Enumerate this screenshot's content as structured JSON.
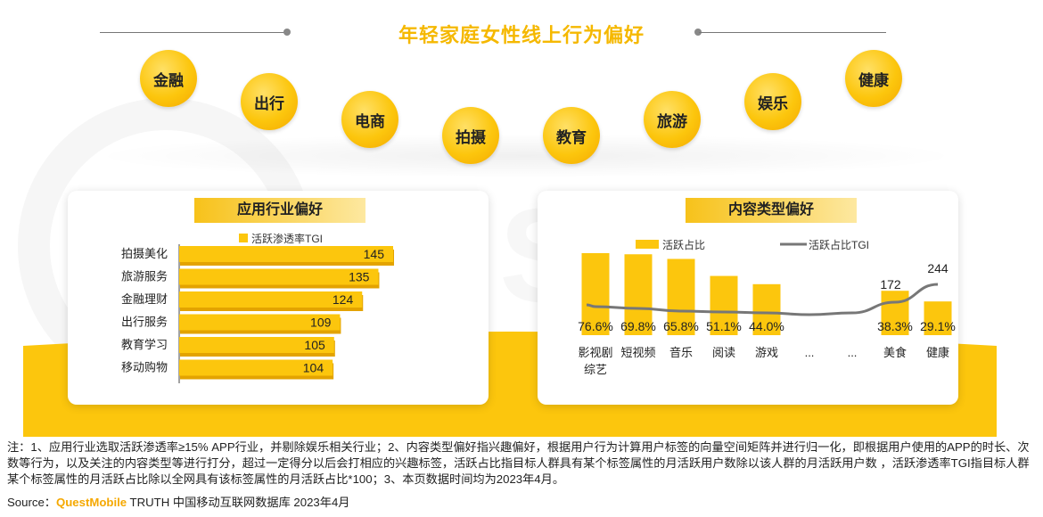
{
  "title": "年轻家庭女性线上行为偏好",
  "behaviors": [
    "金融",
    "出行",
    "电商",
    "拍摄",
    "教育",
    "旅游",
    "娱乐",
    "健康"
  ],
  "left_panel": {
    "title": "应用行业偏好",
    "legend": "活跃渗透率TGI"
  },
  "right_panel": {
    "title": "内容类型偏好",
    "legend_bar": "活跃占比",
    "legend_line": "活跃占比TGI"
  },
  "chart_data": [
    {
      "type": "bar",
      "orientation": "horizontal",
      "categories": [
        "拍摄美化",
        "旅游服务",
        "金融理财",
        "出行服务",
        "教育学习",
        "移动购物"
      ],
      "series": [
        {
          "name": "活跃渗透率TGI",
          "values": [
            145,
            135,
            124,
            109,
            105,
            104
          ]
        }
      ]
    },
    {
      "type": "bar",
      "categories": [
        "影视剧综艺",
        "短视频",
        "音乐",
        "阅读",
        "游戏",
        "...",
        "...",
        "美食",
        "健康"
      ],
      "category_labels": [
        [
          "影视剧",
          "综艺"
        ],
        [
          "短视频"
        ],
        [
          "音乐"
        ],
        [
          "阅读"
        ],
        [
          "游戏"
        ],
        [
          "..."
        ],
        [
          "..."
        ],
        [
          "美食"
        ],
        [
          "健康"
        ]
      ],
      "series": [
        {
          "name": "活跃占比",
          "values": [
            76.6,
            69.8,
            65.8,
            51.1,
            44.0,
            null,
            null,
            38.3,
            29.1
          ],
          "labels": [
            "76.6%",
            "69.8%",
            "65.8%",
            "51.1%",
            "44.0%",
            "",
            "",
            "38.3%",
            "29.1%"
          ]
        },
        {
          "name": "活跃占比TGI",
          "type": "line",
          "values": [
            null,
            null,
            null,
            null,
            null,
            null,
            null,
            172,
            244
          ],
          "labels": [
            "",
            "",
            "",
            "",
            "",
            "",
            "",
            "172",
            "244"
          ]
        }
      ]
    }
  ],
  "note": "注：1、应用行业选取活跃渗透率≥15% APP行业，并剔除娱乐相关行业；2、内容类型偏好指兴趣偏好，根据用户行为计算用户标签的向量空间矩阵并进行归一化，即根据用户使用的APP的时长、次数等行为，以及关注的内容类型等进行打分，超过一定得分以后会打相应的兴趣标签，活跃占比指目标人群具有某个标签属性的月活跃用户数除以该人群的月活跃用户数 ，活跃渗透率TGI指目标人群某个标签属性的月活跃占比除以全网具有该标签属性的月活跃占比*100；3、本页数据时间均为2023年4月。",
  "source": {
    "prefix": "Source：",
    "brand": "QuestMobile",
    "suffix": " TRUTH 中国移动互联网数据库 2023年4月"
  }
}
